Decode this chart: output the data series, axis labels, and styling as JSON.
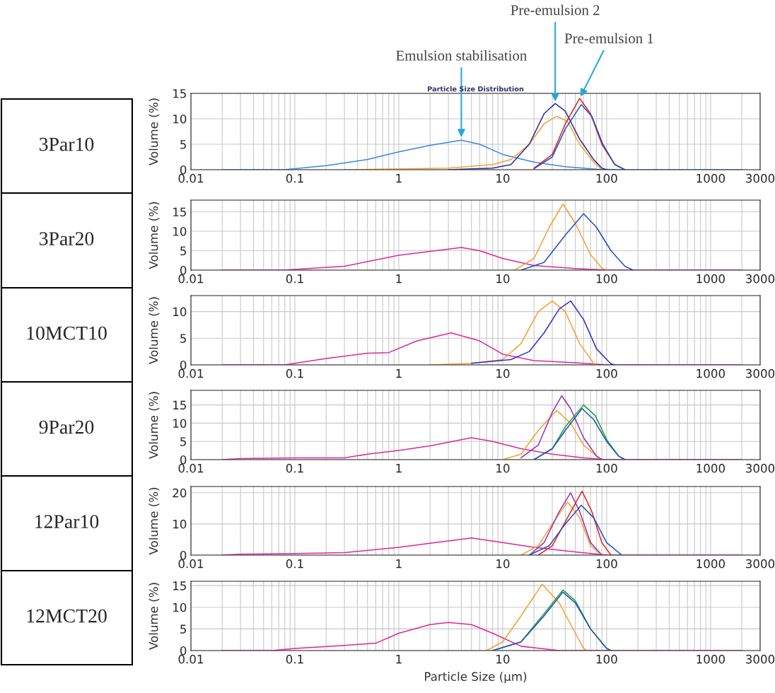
{
  "chart_data": [
    {
      "type": "line",
      "title": "3Par10",
      "subtitle": "Particle Size Distribution",
      "ylabel": "Volume (%)",
      "xlim": [
        0.01,
        3000
      ],
      "xticks": [
        0.01,
        0.1,
        1,
        10,
        100,
        1000,
        3000
      ],
      "ylim": [
        0,
        15
      ],
      "yticks": [
        0,
        5,
        10,
        15
      ],
      "log": "x",
      "grid": true,
      "tick_labels": true,
      "annotations": [
        {
          "text": "Emulsion stabilisation",
          "x": 4,
          "y": 6
        },
        {
          "text": "Pre-emulsion 2",
          "x": 32,
          "y": 13
        },
        {
          "text": "Pre-emulsion 1",
          "x": 55,
          "y": 14
        }
      ],
      "series": [
        {
          "color": "#3d86e0",
          "x": [
            0.02,
            0.08,
            0.1,
            0.2,
            0.5,
            1,
            2,
            4,
            6,
            10,
            20,
            40,
            80,
            150,
            2000
          ],
          "values": [
            0,
            0,
            0.2,
            0.8,
            2,
            3.5,
            4.8,
            5.8,
            5,
            3,
            1.5,
            0.6,
            0.1,
            0,
            0
          ]
        },
        {
          "color": "#f5a030",
          "x": [
            0.3,
            3,
            8,
            12,
            18,
            25,
            33,
            42,
            55,
            75,
            90
          ],
          "values": [
            0,
            0.3,
            1,
            2,
            5,
            9,
            10.5,
            9.5,
            5,
            1.5,
            0
          ]
        },
        {
          "color": "#2b2b9e",
          "x": [
            3,
            8,
            12,
            18,
            25,
            32,
            40,
            55,
            75,
            90,
            100
          ],
          "values": [
            0,
            0.3,
            1,
            5,
            11,
            13,
            11.5,
            6,
            2,
            0.3,
            0
          ]
        },
        {
          "color": "#e02020",
          "x": [
            20,
            30,
            40,
            55,
            70,
            90,
            120,
            150
          ],
          "values": [
            0.3,
            3,
            9,
            14,
            11,
            5,
            1,
            0
          ]
        },
        {
          "color": "#1f4fbf",
          "x": [
            20,
            30,
            40,
            57,
            72,
            92,
            120,
            150
          ],
          "values": [
            0.2,
            2.5,
            8,
            12.8,
            10.5,
            5,
            1,
            0
          ]
        }
      ]
    },
    {
      "type": "line",
      "title": "3Par20",
      "ylabel": "Volume (%)",
      "xlim": [
        0.01,
        3000
      ],
      "xticks": [
        0.01,
        0.1,
        1,
        10,
        100,
        1000,
        3000
      ],
      "ylim": [
        0,
        18
      ],
      "yticks": [
        0,
        5,
        10,
        15
      ],
      "log": "x",
      "grid": true,
      "tick_labels": true,
      "series": [
        {
          "color": "#e0259d",
          "x": [
            0.02,
            0.08,
            0.1,
            0.3,
            1,
            2,
            4,
            6,
            10,
            20,
            50,
            100,
            2000
          ],
          "values": [
            0,
            0,
            0.2,
            1,
            3.8,
            4.8,
            5.8,
            5,
            3,
            1.2,
            0.4,
            0,
            0
          ]
        },
        {
          "color": "#f5a030",
          "x": [
            13,
            20,
            28,
            38,
            50,
            70,
            90,
            100
          ],
          "values": [
            0,
            3,
            11,
            17,
            12,
            4,
            0.5,
            0
          ]
        },
        {
          "color": "#1f4fbf",
          "x": [
            15,
            25,
            40,
            60,
            80,
            110,
            150,
            180
          ],
          "values": [
            0,
            2,
            9,
            14.5,
            11,
            5,
            1,
            0
          ]
        }
      ]
    },
    {
      "type": "line",
      "title": "10MCT10",
      "ylabel": "Volume (%)",
      "xlim": [
        0.01,
        3000
      ],
      "xticks": [
        0.01,
        0.1,
        1,
        10,
        100,
        1000,
        3000
      ],
      "ylim": [
        0,
        13
      ],
      "yticks": [
        0,
        5,
        10
      ],
      "log": "x",
      "grid": true,
      "tick_labels": true,
      "series": [
        {
          "color": "#e0259d",
          "x": [
            0.02,
            0.08,
            0.2,
            0.5,
            0.8,
            1.5,
            3.2,
            6,
            10,
            20,
            50,
            100,
            2000
          ],
          "values": [
            0,
            0,
            1.2,
            2.2,
            2.3,
            4.5,
            6,
            4.5,
            2,
            0.8,
            0.4,
            0,
            0
          ]
        },
        {
          "color": "#f5a030",
          "x": [
            2,
            5,
            10,
            15,
            22,
            30,
            40,
            55,
            75,
            80
          ],
          "values": [
            0,
            0.3,
            1,
            4,
            10,
            12,
            10,
            4,
            0.3,
            0
          ]
        },
        {
          "color": "#3030d0",
          "x": [
            5,
            12,
            18,
            25,
            35,
            45,
            60,
            80,
            110,
            120
          ],
          "values": [
            0.3,
            1,
            2.5,
            6,
            10.5,
            12,
            8.5,
            3,
            0.2,
            0
          ]
        }
      ]
    },
    {
      "type": "line",
      "title": "9Par20",
      "ylabel": "Volume (%)",
      "xlim": [
        0.01,
        3000
      ],
      "xticks": [
        0.01,
        0.1,
        1,
        10,
        100,
        1000,
        3000
      ],
      "ylim": [
        0,
        19
      ],
      "yticks": [
        0,
        5,
        10,
        15
      ],
      "log": "x",
      "grid": true,
      "tick_labels": true,
      "series": [
        {
          "color": "#e0259d",
          "x": [
            0.02,
            0.03,
            0.1,
            0.3,
            0.5,
            1,
            2,
            5,
            8,
            15,
            30,
            60,
            100,
            2000
          ],
          "values": [
            0,
            0.3,
            0.5,
            0.5,
            1.5,
            2.5,
            3.8,
            6,
            5,
            3,
            1.5,
            0.5,
            0,
            0
          ]
        },
        {
          "color": "#f5a030",
          "x": [
            10,
            15,
            22,
            33,
            45,
            60,
            85
          ],
          "values": [
            0,
            1.5,
            8,
            13.5,
            10,
            4,
            0.3
          ]
        },
        {
          "color": "#9b30b0",
          "x": [
            15,
            22,
            30,
            37,
            45,
            60,
            80,
            90
          ],
          "values": [
            0.5,
            4,
            13,
            17.5,
            14,
            6,
            1,
            0
          ]
        },
        {
          "color": "#1f9f30",
          "x": [
            20,
            30,
            40,
            60,
            78,
            100,
            130,
            150
          ],
          "values": [
            0,
            3,
            9,
            15,
            12,
            5.5,
            1,
            0
          ]
        },
        {
          "color": "#1f4fbf",
          "x": [
            20,
            30,
            40,
            58,
            75,
            100,
            130,
            150
          ],
          "values": [
            0,
            3,
            8,
            14,
            11,
            5,
            1,
            0
          ]
        }
      ]
    },
    {
      "type": "line",
      "title": "12Par10",
      "ylabel": "Volume (%)",
      "xlim": [
        0.01,
        3000
      ],
      "xticks": [
        0.01,
        0.1,
        1,
        10,
        100,
        1000,
        3000
      ],
      "ylim": [
        0,
        22
      ],
      "yticks": [
        0,
        10,
        20
      ],
      "log": "x",
      "grid": true,
      "tick_labels": true,
      "series": [
        {
          "color": "#e0259d",
          "x": [
            0.02,
            0.03,
            0.1,
            0.3,
            1,
            2,
            5,
            10,
            20,
            50,
            100,
            2000
          ],
          "values": [
            0,
            0.3,
            0.5,
            0.8,
            2.5,
            3.8,
            5.5,
            4,
            2.5,
            1,
            0,
            0
          ]
        },
        {
          "color": "#f5a030",
          "x": [
            15,
            22,
            30,
            42,
            55,
            70,
            90
          ],
          "values": [
            0,
            3,
            10,
            17,
            12,
            3,
            0
          ]
        },
        {
          "color": "#9b30b0",
          "x": [
            18,
            25,
            35,
            45,
            55,
            70,
            90
          ],
          "values": [
            0,
            4,
            14,
            20,
            14,
            4,
            0
          ]
        },
        {
          "color": "#e02020",
          "x": [
            22,
            30,
            42,
            58,
            72,
            90,
            110
          ],
          "values": [
            0,
            3,
            12,
            20.5,
            14,
            4,
            0
          ]
        },
        {
          "color": "#1f4fbf",
          "x": [
            18,
            28,
            40,
            57,
            75,
            100,
            140
          ],
          "values": [
            0,
            3,
            10,
            16,
            12,
            4,
            0
          ]
        }
      ]
    },
    {
      "type": "line",
      "title": "12MCT20",
      "ylabel": "Volume (%)",
      "xlabel": "Particle Size (µm)",
      "xlim": [
        0.01,
        3000
      ],
      "xticks": [
        0.01,
        0.1,
        1,
        10,
        100,
        1000,
        3000
      ],
      "ylim": [
        0,
        16
      ],
      "yticks": [
        0,
        5,
        10,
        15
      ],
      "log": "x",
      "grid": true,
      "tick_labels": true,
      "series": [
        {
          "color": "#e0259d",
          "x": [
            0.02,
            0.06,
            0.1,
            0.3,
            0.6,
            1,
            2,
            3,
            5,
            8,
            15,
            35,
            2000
          ],
          "values": [
            0,
            0,
            0.5,
            1.2,
            1.7,
            4,
            6,
            6.5,
            6,
            4,
            1,
            0,
            0
          ]
        },
        {
          "color": "#f5a030",
          "x": [
            7,
            10,
            15,
            24,
            35,
            50,
            60,
            65
          ],
          "values": [
            0,
            2,
            8,
            15.3,
            11,
            4,
            0.5,
            0
          ]
        },
        {
          "color": "#1f9f30",
          "x": [
            8,
            15,
            25,
            38,
            50,
            70,
            100,
            110
          ],
          "values": [
            0,
            2,
            8.5,
            14,
            11.5,
            5,
            0.5,
            0
          ]
        },
        {
          "color": "#1f4fbf",
          "x": [
            8,
            15,
            25,
            38,
            50,
            70,
            100,
            110
          ],
          "values": [
            0,
            2,
            8,
            13.5,
            11,
            5,
            0.5,
            0
          ]
        }
      ]
    }
  ]
}
